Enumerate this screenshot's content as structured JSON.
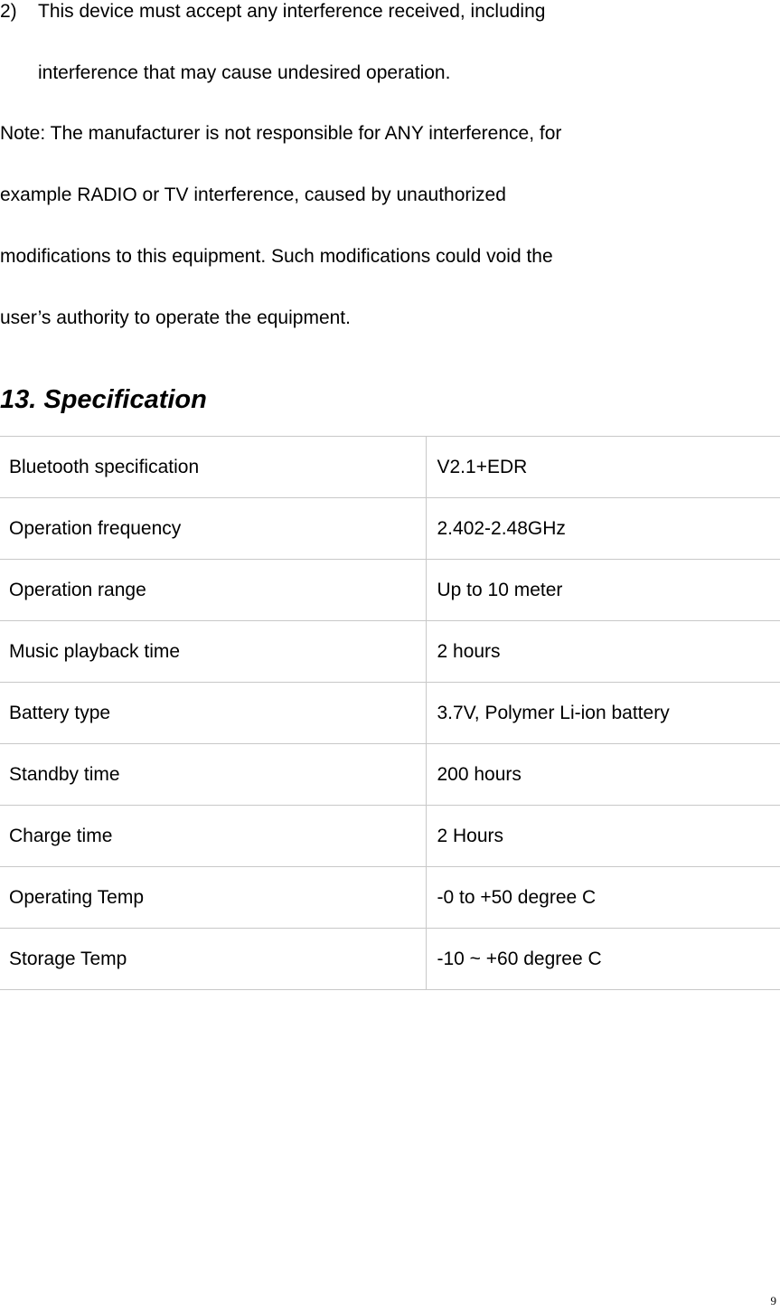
{
  "list_item": {
    "number": "2)",
    "lines": [
      "This device must accept any interference received, including",
      "interference that may cause undesired operation."
    ]
  },
  "note_lines": [
    "Note: The manufacturer is not responsible for ANY interference, for",
    "example RADIO or TV interference, caused by unauthorized",
    "modifications to this equipment. Such modifications could void the",
    "user’s authority to operate the equipment."
  ],
  "heading": "13. Specification",
  "spec_table": [
    {
      "key": "Bluetooth specification",
      "value": "V2.1+EDR"
    },
    {
      "key": "Operation frequency",
      "value": "2.402-2.48GHz"
    },
    {
      "key": "Operation range",
      "value": "Up to 10 meter"
    },
    {
      "key": "Music playback time",
      "value": "2 hours"
    },
    {
      "key": "Battery type",
      "value": "3.7V, Polymer Li-ion battery"
    },
    {
      "key": "Standby time",
      "value": "200 hours"
    },
    {
      "key": "Charge time",
      "value": "2 Hours"
    },
    {
      "key": "Operating Temp",
      "value": "-0 to +50 degree C"
    },
    {
      "key": "Storage Temp",
      "value": "-10 ~ +60 degree C"
    }
  ],
  "page_number": "9"
}
